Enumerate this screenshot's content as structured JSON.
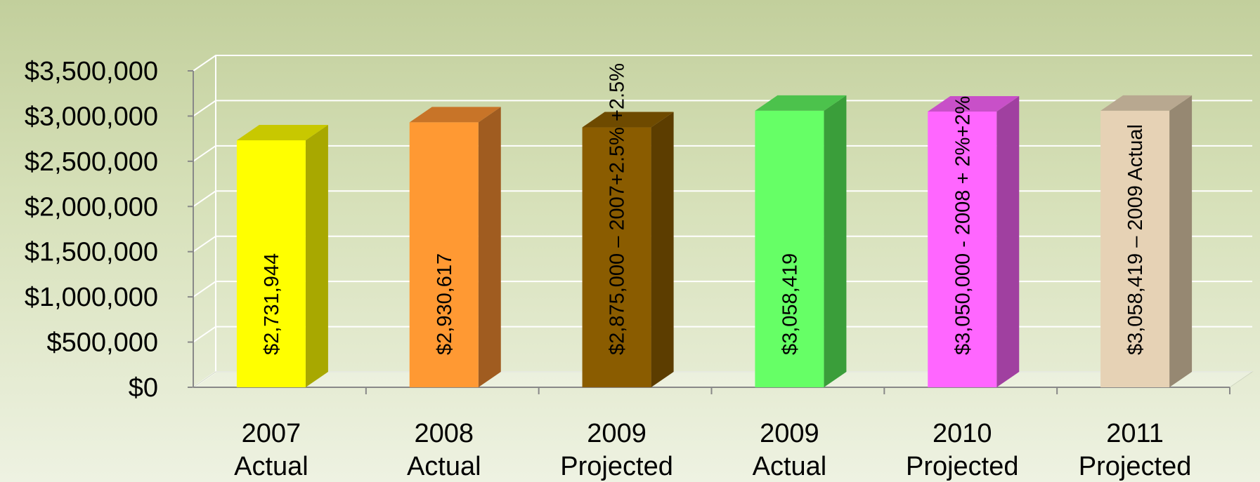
{
  "chart_data": {
    "type": "bar",
    "title": "",
    "xlabel": "",
    "ylabel": "",
    "ylim": [
      0,
      3500000
    ],
    "grid": true,
    "y_ticks": [
      {
        "value": 0,
        "label": "$0"
      },
      {
        "value": 500000,
        "label": "$500,000"
      },
      {
        "value": 1000000,
        "label": "$1,000,000"
      },
      {
        "value": 1500000,
        "label": "$1,500,000"
      },
      {
        "value": 2000000,
        "label": "$2,000,000"
      },
      {
        "value": 2500000,
        "label": "$2,500,000"
      },
      {
        "value": 3000000,
        "label": "$3,000,000"
      },
      {
        "value": 3500000,
        "label": "$3,500,000"
      }
    ],
    "categories": [
      {
        "line1": "2007",
        "line2": "Actual"
      },
      {
        "line1": "2008",
        "line2": "Actual"
      },
      {
        "line1": "2009",
        "line2": "Projected"
      },
      {
        "line1": "2009",
        "line2": "Actual"
      },
      {
        "line1": "2010",
        "line2": "Projected"
      },
      {
        "line1": "2011",
        "line2": "Projected"
      }
    ],
    "values": [
      2731944,
      2930617,
      2875000,
      3058419,
      3050000,
      3058419
    ],
    "data_labels": [
      "$2,731,944",
      "$2,930,617",
      "$2,875,000 – 2007+2.5% +2.5%",
      "$3,058,419",
      "$3,050,000 - 2008 + 2%+2%",
      "$3,058,419 – 2009 Actual"
    ],
    "colors": [
      {
        "front": "#ffff00",
        "side": "#a8a800",
        "top": "#c8c800"
      },
      {
        "front": "#ff9933",
        "side": "#a05c20",
        "top": "#c87428"
      },
      {
        "front": "#8a5c00",
        "side": "#5c3d00",
        "top": "#6e4a00"
      },
      {
        "front": "#66ff66",
        "side": "#3a9e3a",
        "top": "#4cc24c"
      },
      {
        "front": "#ff66ff",
        "side": "#a040a0",
        "top": "#c850c8"
      },
      {
        "front": "#e6d2b5",
        "side": "#968872",
        "top": "#b8a890"
      }
    ]
  }
}
